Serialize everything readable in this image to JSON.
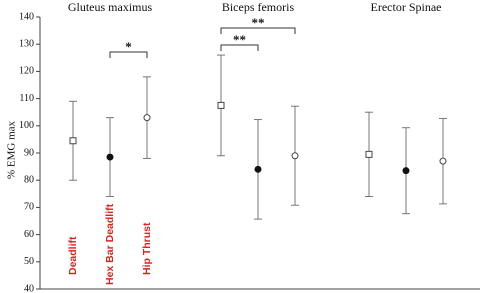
{
  "chart_data": {
    "type": "errorpoint",
    "y_label": "% EMG max",
    "categories": [
      "Gluteus maximus",
      "Biceps femoris",
      "Erector Spinae"
    ],
    "series": [
      {
        "name": "Deadlift",
        "color": "#444444",
        "marker": "open-square",
        "values": [
          94.5,
          107.5,
          89.5
        ],
        "errors": [
          14.5,
          18.5,
          15.5
        ]
      },
      {
        "name": "Hex Bar Deadlift",
        "color": "#111111",
        "marker": "filled-circle",
        "values": [
          88.5,
          84,
          83.5
        ],
        "errors": [
          14.5,
          18.3,
          15.8
        ]
      },
      {
        "name": "Hip Thrust",
        "color": "#444444",
        "marker": "open-circle",
        "values": [
          103,
          89,
          87
        ],
        "errors": [
          15,
          18.2,
          15.7
        ]
      }
    ],
    "annotations": [
      "*",
      "**",
      "**"
    ],
    "ylim": [
      40,
      140
    ],
    "yticks": [
      40,
      50,
      60,
      70,
      80,
      90,
      100,
      110,
      120,
      130,
      140
    ]
  }
}
